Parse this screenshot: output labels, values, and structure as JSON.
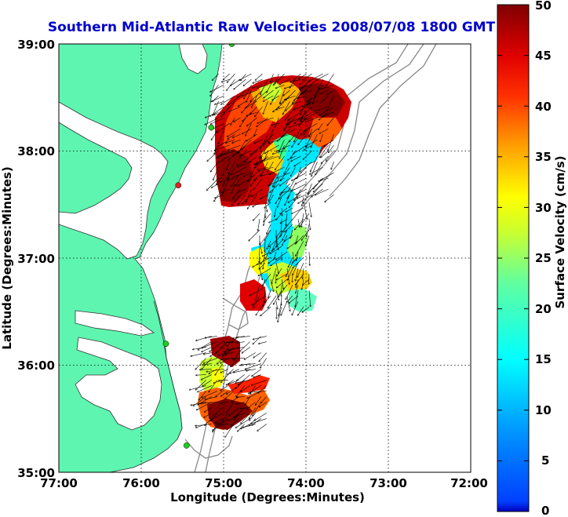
{
  "title": "Southern Mid-Atlantic Raw Velocities 2008/07/08 1800 GMT",
  "x_axis": {
    "label": "Longitude (Degrees:Minutes)",
    "ticks": [
      "77:00",
      "76:00",
      "75:00",
      "74:00",
      "73:00",
      "72:00"
    ],
    "values": [
      -77,
      -76,
      -75,
      -74,
      -73,
      -72
    ],
    "range": [
      -77,
      -72
    ]
  },
  "y_axis": {
    "label": "Latitude (Degrees:Minutes)",
    "ticks": [
      "39:00",
      "38:00",
      "37:00",
      "36:00",
      "35:00"
    ],
    "values": [
      39,
      38,
      37,
      36,
      35
    ],
    "range": [
      35,
      39
    ]
  },
  "colorbar": {
    "label": "Surface Velocity (cm/s)",
    "ticks": [
      "50",
      "45",
      "40",
      "35",
      "30",
      "25",
      "20",
      "15",
      "10",
      "5",
      "0"
    ],
    "range": [
      0,
      50
    ],
    "colormap": "jet"
  },
  "colors": {
    "land": "#5ef5b0",
    "water": "#ffffff",
    "bathymetry": "#888888",
    "station_green": "#22cc22",
    "station_red": "#dd2222",
    "title": "#0000cc"
  },
  "chart_data": {
    "type": "heatmap",
    "title": "Southern Mid-Atlantic Raw Velocities 2008/07/08 1800 GMT",
    "xlabel": "Longitude (Degrees:Minutes)",
    "ylabel": "Latitude (Degrees:Minutes)",
    "xlim": [
      -77,
      -72
    ],
    "ylim": [
      35,
      39
    ],
    "grid": true,
    "value_label": "Surface Velocity (cm/s)",
    "value_range": [
      0,
      50
    ],
    "regions": [
      {
        "lon": [
          -75.1,
          -73.6
        ],
        "lat": [
          37.55,
          38.75
        ],
        "speed_range": [
          15,
          50
        ],
        "dominant": "high (red/orange) in north and west, cyan in south-east"
      },
      {
        "lon": [
          -74.6,
          -73.95
        ],
        "lat": [
          36.5,
          37.6
        ],
        "speed_range": [
          10,
          45
        ],
        "dominant": "cyan/green/yellow, red patch in south-west"
      },
      {
        "lon": [
          -75.25,
          -74.45
        ],
        "lat": [
          35.45,
          36.3
        ],
        "speed_range": [
          20,
          50
        ],
        "dominant": "dark red/red with yellow-green"
      }
    ],
    "stations": [
      {
        "lon": -74.9,
        "lat": 39.0,
        "status": "green"
      },
      {
        "lon": -75.15,
        "lat": 38.22,
        "status": "green"
      },
      {
        "lon": -75.55,
        "lat": 37.68,
        "status": "red"
      },
      {
        "lon": -75.7,
        "lat": 36.2,
        "status": "green"
      },
      {
        "lon": -75.45,
        "lat": 35.25,
        "status": "green"
      }
    ]
  }
}
